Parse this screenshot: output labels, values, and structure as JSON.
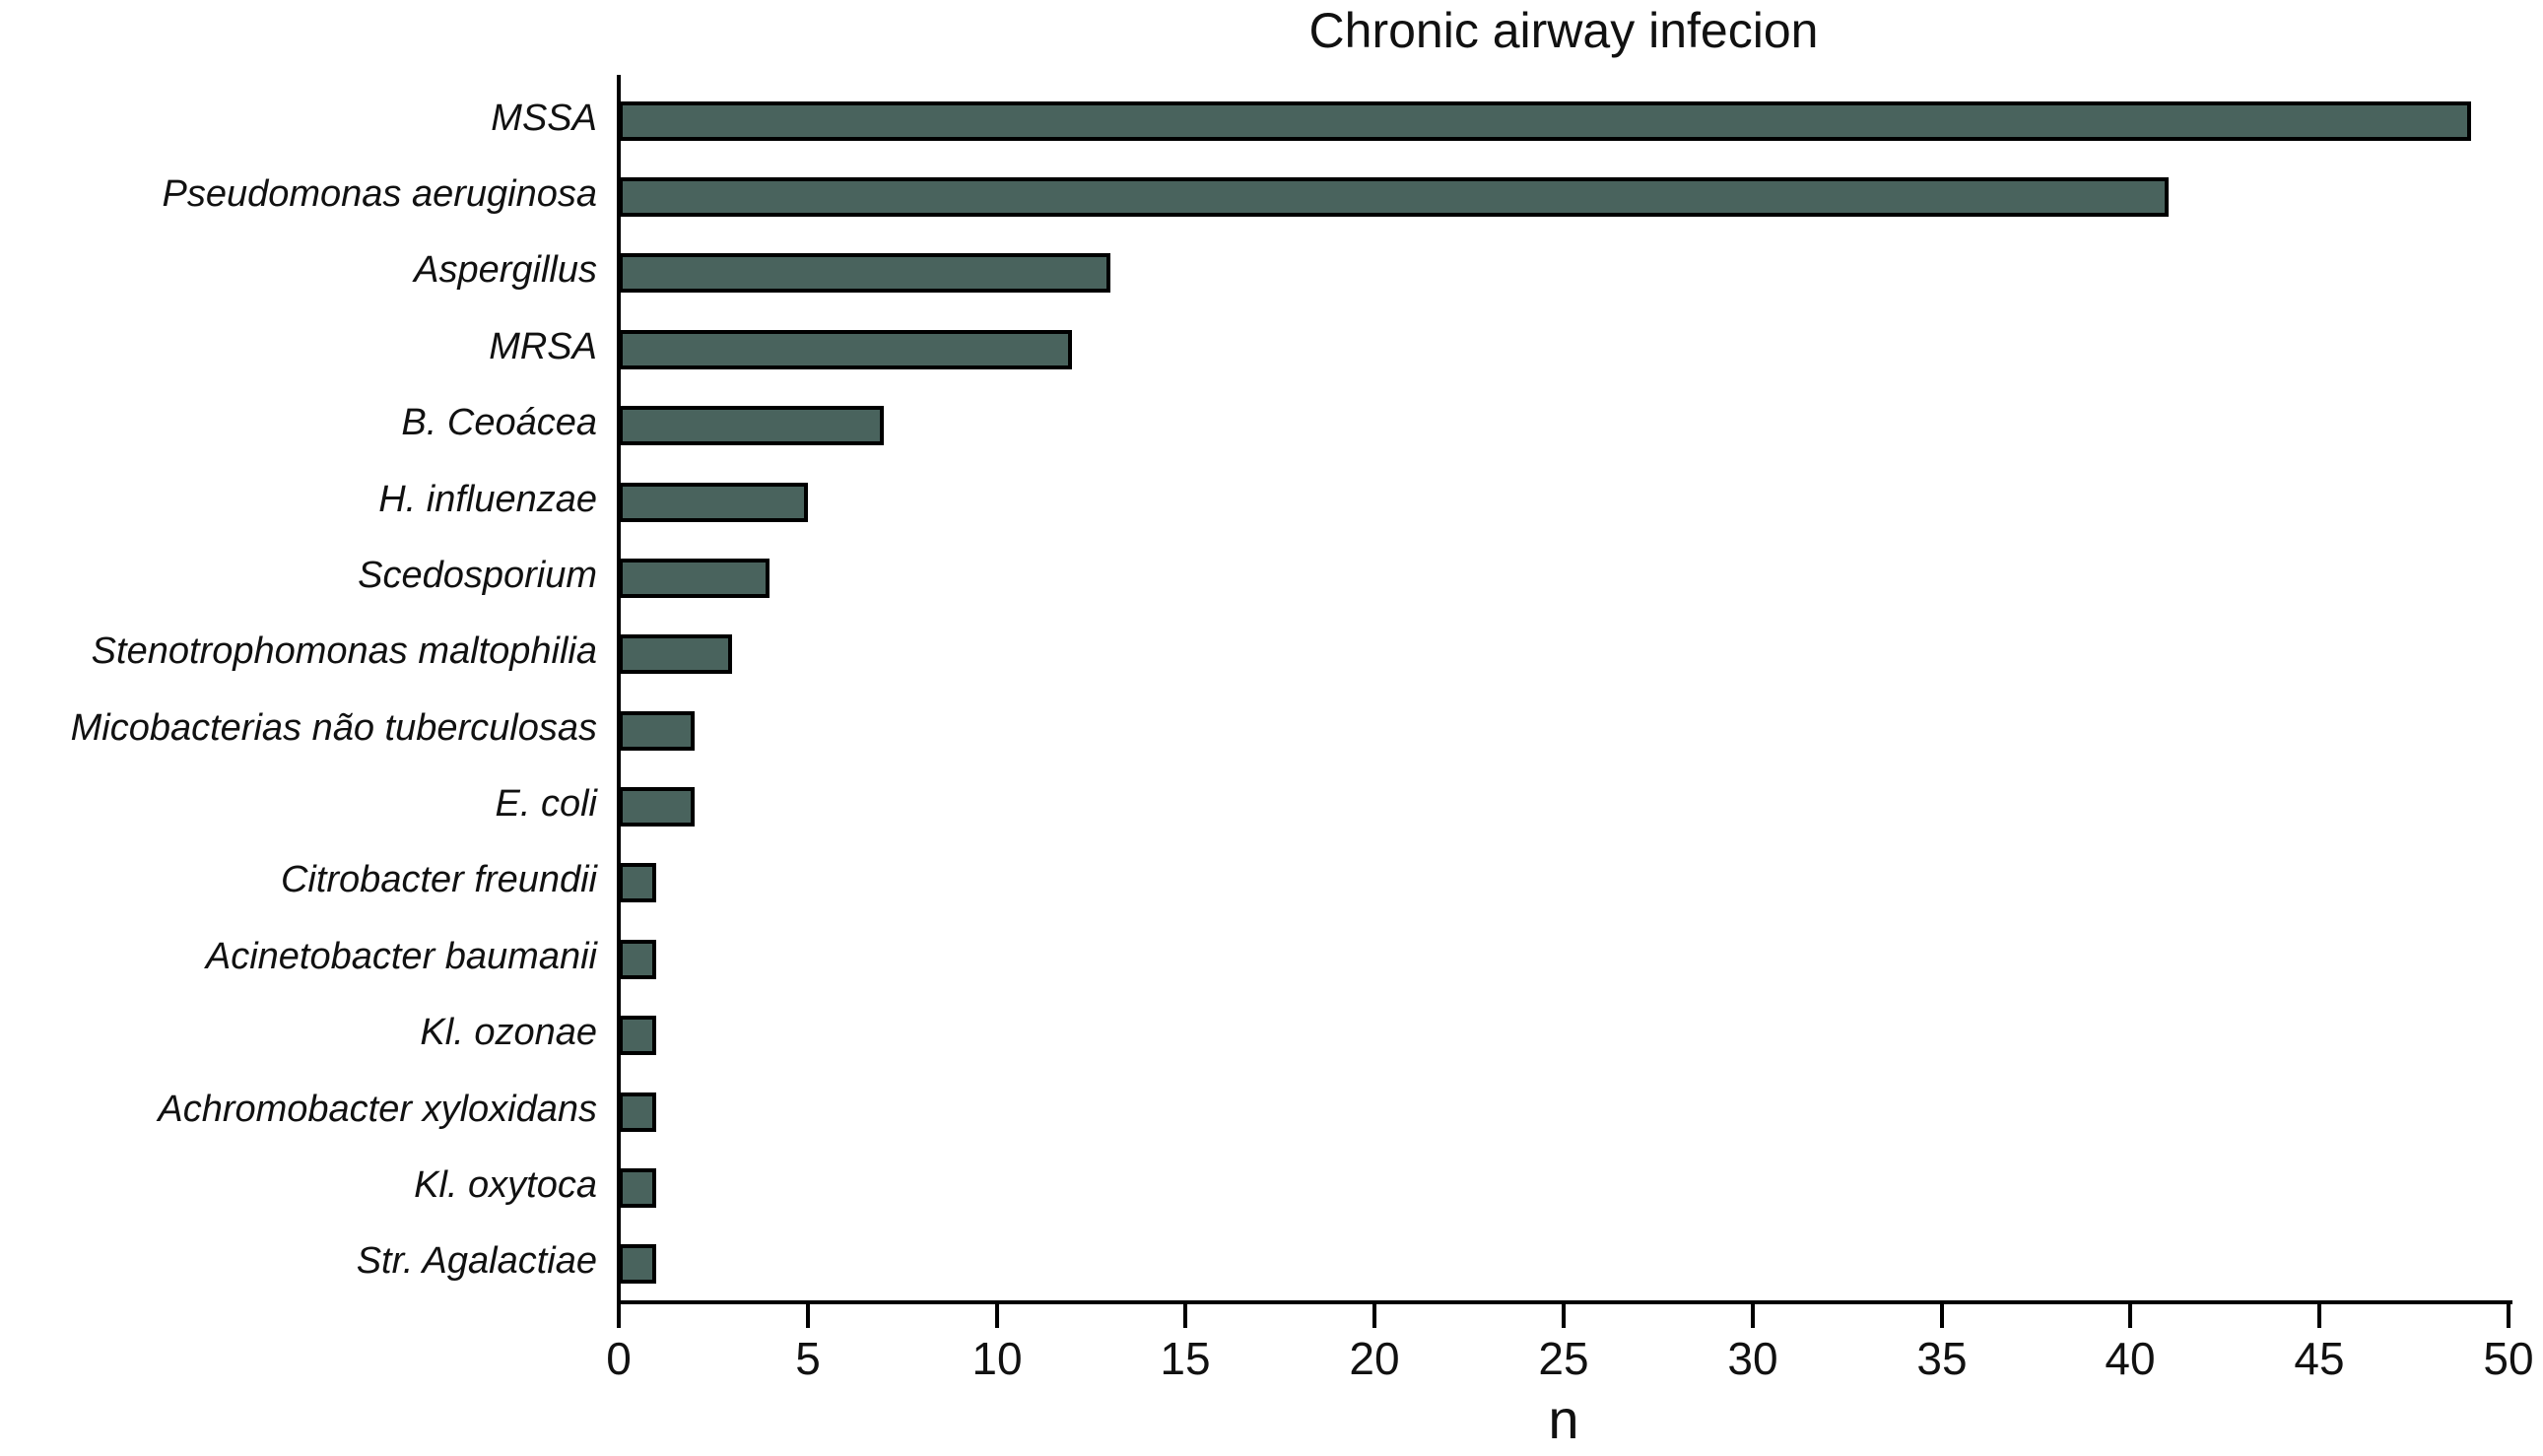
{
  "figure": {
    "background": "#FFFFFF"
  },
  "colors": {
    "bar_fill": "#49635D",
    "bar_border": "#000000",
    "axis": "#000000",
    "text": "#111111"
  },
  "chart_data": {
    "type": "bar",
    "orientation": "horizontal",
    "title": "Chronic airway infecion",
    "xlabel": "n",
    "ylabel": "",
    "categories": [
      "MSSA",
      "Pseudomonas aeruginosa",
      "Aspergillus",
      "MRSA",
      "B. Ceoácea",
      "H. influenzae",
      "Scedosporium",
      "Stenotrophomonas maltophilia",
      "Micobacterias não tuberculosas",
      "E. coli",
      "Citrobacter freundii",
      "Acinetobacter baumanii",
      "Kl. ozonae",
      "Achromobacter xyloxidans",
      "Kl. oxytoca",
      "Str. Agalactiae"
    ],
    "values": [
      49,
      41,
      13,
      12,
      7,
      5,
      4,
      3,
      2,
      2,
      1,
      1,
      1,
      1,
      1,
      1
    ],
    "xlim": [
      0,
      50
    ],
    "xticks": [
      0,
      5,
      10,
      15,
      20,
      25,
      30,
      35,
      40,
      45,
      50
    ],
    "grid": false,
    "legend": null,
    "category_label_style": "italic"
  }
}
